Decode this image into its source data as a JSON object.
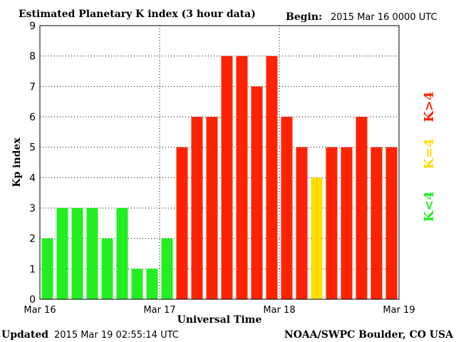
{
  "header": {
    "title": "Estimated Planetary K index (3 hour data)",
    "begin_label": "Begin:",
    "begin_value": "2015 Mar 16 0000 UTC"
  },
  "footer": {
    "updated_label": "Updated",
    "updated_value": "2015 Mar 19 02:55:14 UTC",
    "source": "NOAA/SWPC Boulder, CO USA"
  },
  "legend": {
    "low": {
      "label": "K<4",
      "color": "#22ee22"
    },
    "mid": {
      "label": "K=4",
      "color": "#ffdd00"
    },
    "high": {
      "label": "K>4",
      "color": "#ff2200"
    }
  },
  "chart_data": {
    "type": "bar",
    "title": "Estimated Planetary K index (3 hour data)",
    "xlabel": "Universal Time",
    "ylabel": "Kp index",
    "ylim": [
      0,
      9
    ],
    "yticks": [
      0,
      1,
      2,
      3,
      4,
      5,
      6,
      7,
      8,
      9
    ],
    "xlim": [
      "2015-03-16T00:00Z",
      "2015-03-19T00:00Z"
    ],
    "xtick_labels": [
      "Mar 16",
      "Mar 17",
      "Mar 18",
      "Mar 19"
    ],
    "grid": "dotted vertical day lines and horizontal Kp lines",
    "interval_hours": 3,
    "values": [
      2,
      3,
      3,
      3,
      2,
      3,
      1,
      1,
      2,
      5,
      6,
      6,
      8,
      8,
      7,
      8,
      6,
      5,
      4,
      5,
      5,
      6,
      5,
      5
    ],
    "color_rule": {
      "below_4": "#22ee22",
      "equal_4": "#ffdd00",
      "above_4": "#ff2200"
    }
  }
}
